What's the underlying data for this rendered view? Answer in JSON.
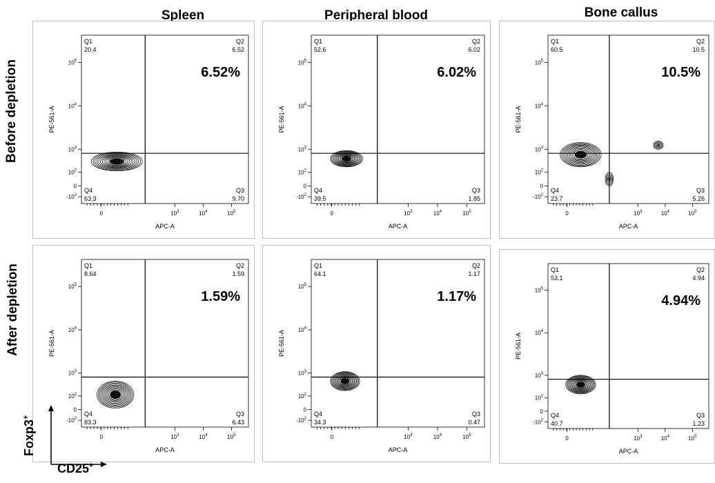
{
  "column_titles": [
    "Spleen",
    "Peripheral blood",
    "Bone callus"
  ],
  "row_titles": [
    "Before depletion",
    "After depletion"
  ],
  "axis_legend": {
    "y_label": "Foxp3",
    "x_label": "CD25",
    "superscript": "+"
  },
  "chart_data": [
    {
      "type": "scatter",
      "row": "Before depletion",
      "column": "Spleen",
      "xlabel": "APC-A",
      "ylabel": "PE-561-A",
      "x_ticks": [
        "0",
        "10^3",
        "10^4",
        "10^5"
      ],
      "y_ticks": [
        "-10^2",
        "0",
        "10^2",
        "10^3",
        "10^4",
        "10^5"
      ],
      "quadrants": {
        "Q1": "20.4",
        "Q2": "6.52",
        "Q3": "9.70",
        "Q4": "63.3"
      },
      "highlight": "6.52%",
      "contours": [
        {
          "cx": 0.55,
          "cy": 0.55,
          "rx": 0.9,
          "ry": 0.35
        }
      ]
    },
    {
      "type": "scatter",
      "row": "Before depletion",
      "column": "Peripheral blood",
      "xlabel": "APC-A",
      "ylabel": "PE-561-A",
      "x_ticks": [
        "0",
        "10^3",
        "10^4",
        "10^5"
      ],
      "y_ticks": [
        "-10^2",
        "0",
        "10^2",
        "10^3",
        "10^4",
        "10^5"
      ],
      "quadrants": {
        "Q1": "52.6",
        "Q2": "6.02",
        "Q3": "1.85",
        "Q4": "39.5"
      },
      "highlight": "6.02%",
      "contours": [
        {
          "cx": 0.5,
          "cy": 0.65,
          "rx": 0.55,
          "ry": 0.3
        }
      ]
    },
    {
      "type": "scatter",
      "row": "Before depletion",
      "column": "Bone callus",
      "xlabel": "APC-A",
      "ylabel": "PE-561-A",
      "x_ticks": [
        "0",
        "10^3",
        "10^4",
        "10^5"
      ],
      "y_ticks": [
        "-10^2",
        "0",
        "10^2",
        "10^3",
        "10^4",
        "10^5"
      ],
      "quadrants": {
        "Q1": "60.5",
        "Q2": "10.5",
        "Q3": "5.26",
        "Q4": "23.7"
      },
      "highlight": "10.5%",
      "contours": [
        {
          "cx": 0.5,
          "cy": 0.8,
          "rx": 0.75,
          "ry": 0.45
        },
        {
          "cx": 3.35,
          "cy": 1.15,
          "rx": 0.18,
          "ry": 0.15
        },
        {
          "cx": 1.55,
          "cy": -0.1,
          "rx": 0.15,
          "ry": 0.25
        }
      ]
    },
    {
      "type": "scatter",
      "row": "After depletion",
      "column": "Spleen",
      "xlabel": "APC-A",
      "ylabel": "PE-561-A",
      "x_ticks": [
        "0",
        "10^3",
        "10^4",
        "10^5"
      ],
      "y_ticks": [
        "-10^2",
        "0",
        "10^2",
        "10^3",
        "10^4",
        "10^5"
      ],
      "quadrants": {
        "Q1": "8.64",
        "Q2": "1.59",
        "Q3": "6.43",
        "Q4": "83.3"
      },
      "highlight": "1.59%",
      "contours": [
        {
          "cx": 0.5,
          "cy": 0.2,
          "rx": 0.65,
          "ry": 0.5
        }
      ]
    },
    {
      "type": "scatter",
      "row": "After depletion",
      "column": "Peripheral blood",
      "xlabel": "APC-A",
      "ylabel": "PE-561-A",
      "x_ticks": [
        "0",
        "10^3",
        "10^4",
        "10^5"
      ],
      "y_ticks": [
        "-10^2",
        "0",
        "10^2",
        "10^3",
        "10^4",
        "10^5"
      ],
      "quadrants": {
        "Q1": "64.1",
        "Q2": "1.17",
        "Q3": "0.47",
        "Q4": "34.3"
      },
      "highlight": "1.17%",
      "contours": [
        {
          "cx": 0.45,
          "cy": 0.7,
          "rx": 0.5,
          "ry": 0.35
        }
      ]
    },
    {
      "type": "scatter",
      "row": "After depletion",
      "column": "Bone callus",
      "xlabel": "APC-A",
      "ylabel": "PE-561-A",
      "x_ticks": [
        "0",
        "10^3",
        "10^4",
        "10^5"
      ],
      "y_ticks": [
        "-10^2",
        "0",
        "10^2",
        "10^3",
        "10^4",
        "10^5"
      ],
      "quadrants": {
        "Q1": "53.1",
        "Q2": "4.94",
        "Q3": "1.23",
        "Q4": "40.7"
      },
      "highlight": "4.94%",
      "contours": [
        {
          "cx": 0.5,
          "cy": 0.65,
          "rx": 0.55,
          "ry": 0.35
        }
      ]
    }
  ]
}
